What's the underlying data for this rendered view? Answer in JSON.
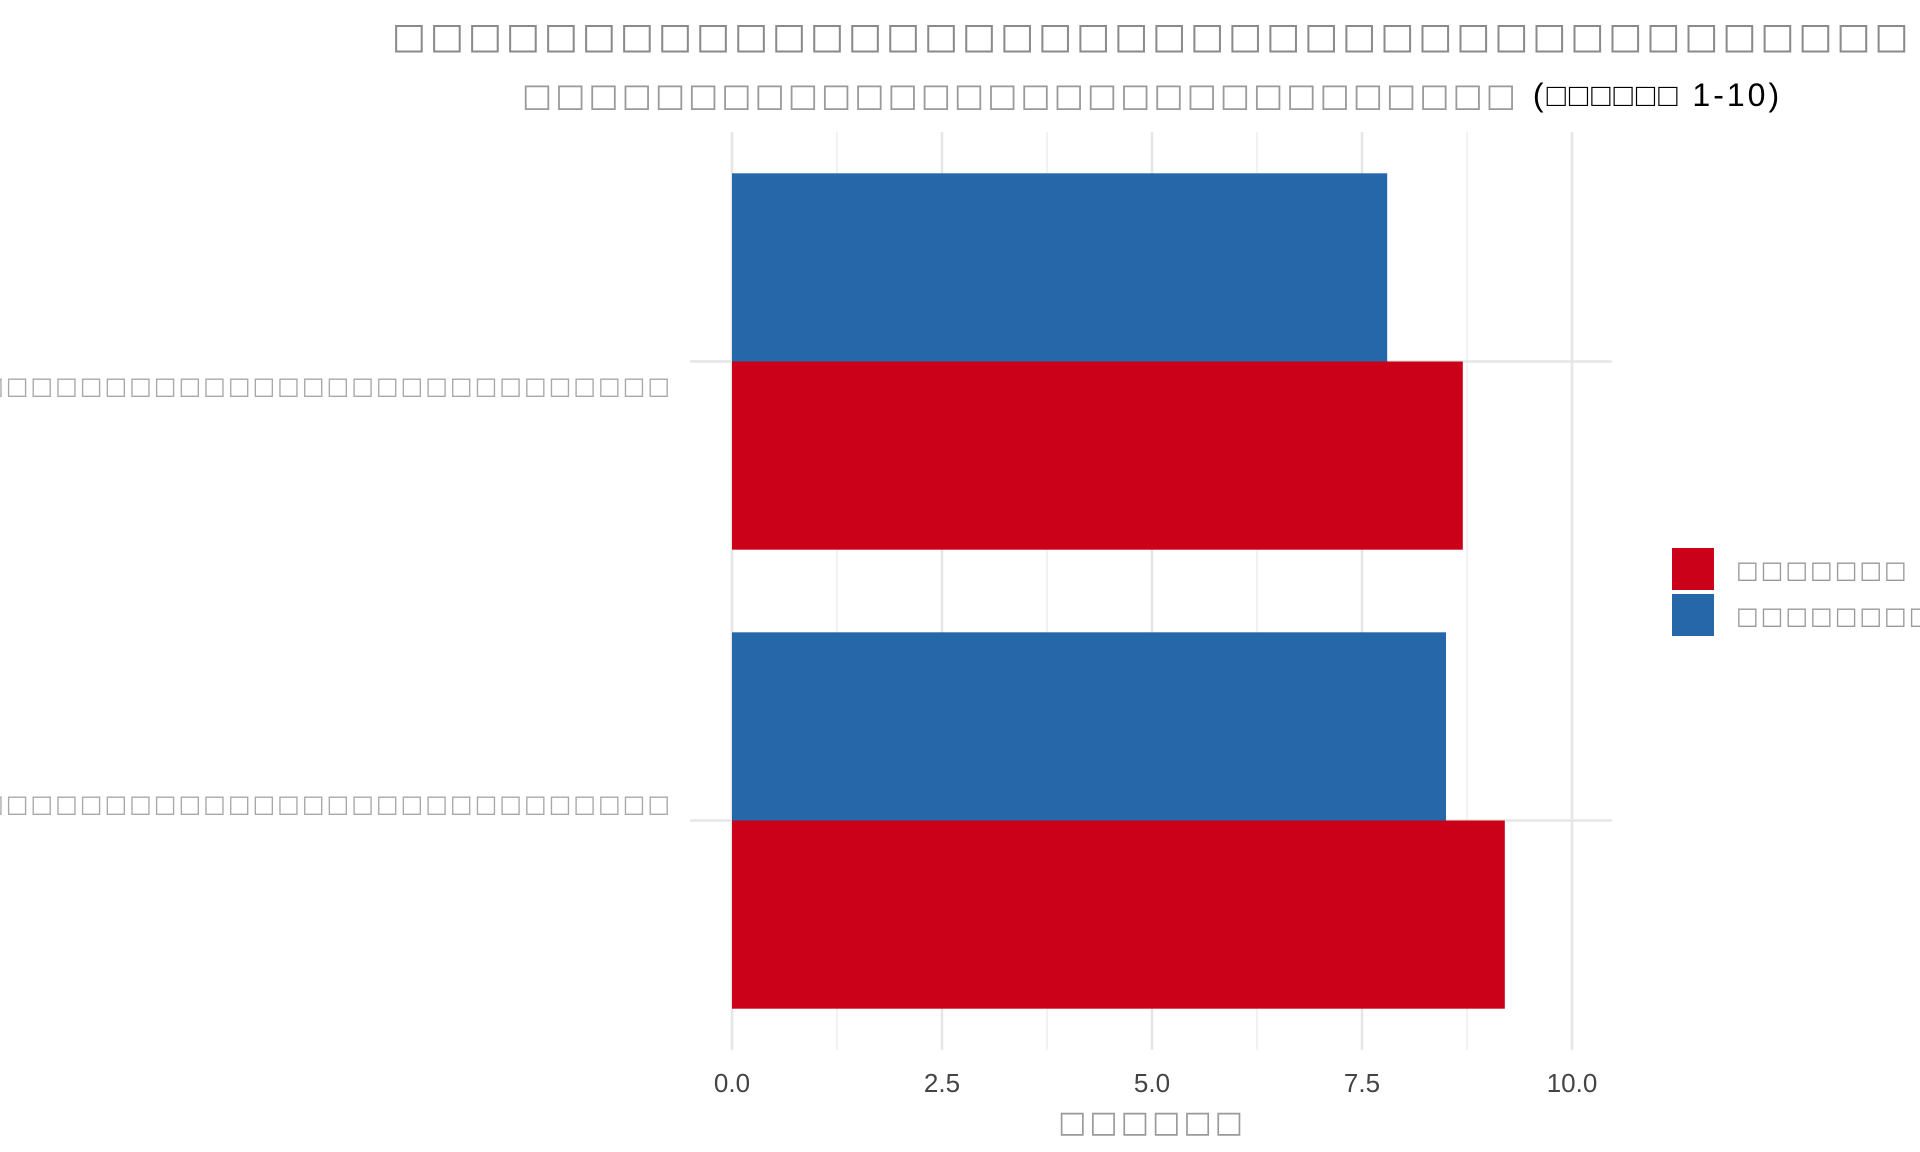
{
  "chart_data": {
    "type": "bar",
    "orientation": "horizontal",
    "title": "□□□□□□□□□□□□□□□□□□□□□□□□□□□□□□□□□□□□□□□□",
    "subtitle": "□□□□□□□□□□□□□□□□□□□□□□□□□□□□□□",
    "subtitle_tail": "(□□□□□□ 1-10)",
    "xlabel": "□□□□□□",
    "ylabel": "",
    "xlim": [
      0,
      10
    ],
    "x_ticks": [
      "0.0",
      "2.5",
      "5.0",
      "7.5",
      "10.0"
    ],
    "x_tick_values": [
      0,
      2.5,
      5,
      7.5,
      10
    ],
    "categories": [
      "□□□□□□□□□□□□□□□□□□□□□□□□□□□□□□",
      "□□□□□□□□□□□□□□□□□□□□□□□□□□□□□□□□□□"
    ],
    "series": [
      {
        "name": "□□□□□□□",
        "color": "#CB0019",
        "values": [
          8.7,
          9.2
        ]
      },
      {
        "name": "□□□□□□□□",
        "color": "#2567A8",
        "values": [
          7.8,
          8.5
        ]
      }
    ],
    "grid": true,
    "legend_position": "right"
  }
}
